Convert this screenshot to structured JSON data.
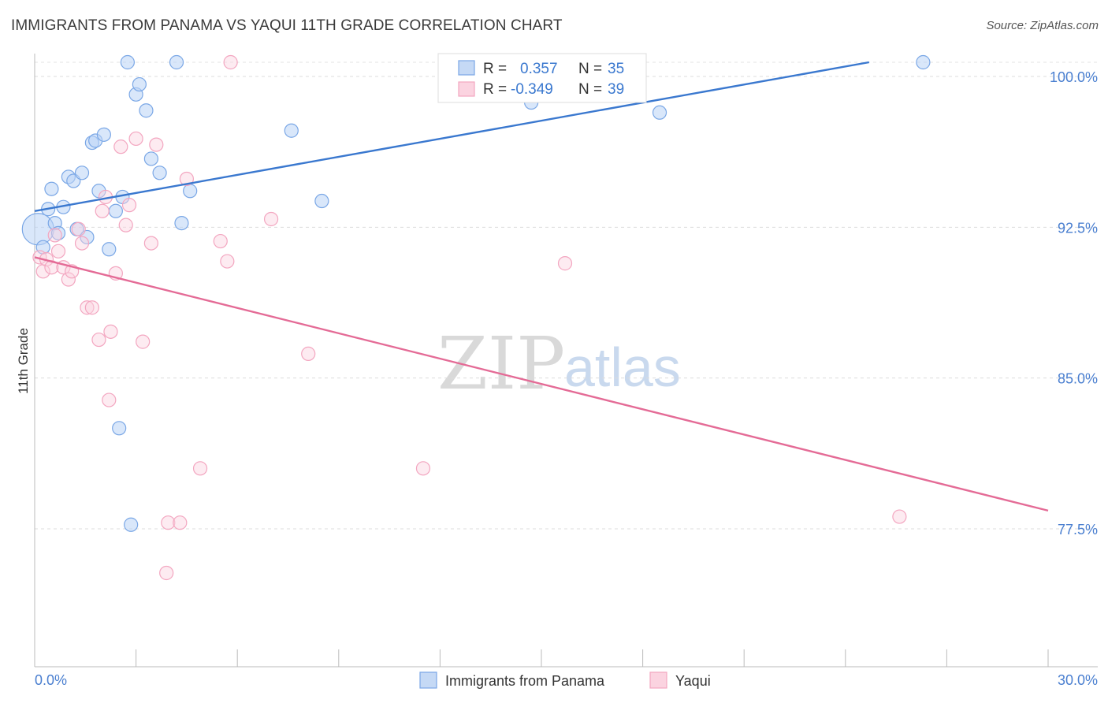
{
  "header": {
    "title": "IMMIGRANTS FROM PANAMA VS YAQUI 11TH GRADE CORRELATION CHART",
    "source": "Source: ZipAtlas.com"
  },
  "watermark": {
    "zip": "ZIP",
    "atlas": "atlas"
  },
  "legend_box": {
    "rows": [
      {
        "r_label": "R =",
        "r_value": "0.357",
        "n_label": "N =",
        "n_value": "35"
      },
      {
        "r_label": "R =",
        "r_value": "-0.349",
        "n_label": "N =",
        "n_value": "39"
      }
    ]
  },
  "chart_data": {
    "type": "scatter",
    "title": "IMMIGRANTS FROM PANAMA VS YAQUI 11TH GRADE CORRELATION CHART",
    "xlabel": "",
    "ylabel": "11th Grade",
    "xlim": [
      0,
      30
    ],
    "ylim": [
      70.5,
      101.0
    ],
    "x_tick_labels": [
      "0.0%",
      "30.0%"
    ],
    "y_ticks": [
      77.5,
      85.0,
      92.5,
      100.0
    ],
    "y_tick_labels": [
      "77.5%",
      "85.0%",
      "92.5%",
      "100.0%"
    ],
    "grid": true,
    "legend_position": "bottom",
    "colors": {
      "panama": "#7aa7e6",
      "panama_line": "#3a78cf",
      "yaqui": "#f3a6c0",
      "yaqui_line": "#e46b96"
    },
    "series": [
      {
        "name": "Immigrants from Panama",
        "trend": {
          "x": [
            0.0,
            24.7
          ],
          "y": [
            92.6,
            100.0
          ]
        },
        "points": [
          {
            "x": 0.1,
            "y": 91.7,
            "big": true
          },
          {
            "x": 0.25,
            "y": 90.8
          },
          {
            "x": 0.4,
            "y": 92.7
          },
          {
            "x": 0.5,
            "y": 93.7
          },
          {
            "x": 0.6,
            "y": 92.0
          },
          {
            "x": 0.7,
            "y": 91.5
          },
          {
            "x": 0.85,
            "y": 92.8
          },
          {
            "x": 1.0,
            "y": 94.3
          },
          {
            "x": 1.15,
            "y": 94.1
          },
          {
            "x": 1.25,
            "y": 91.7
          },
          {
            "x": 1.4,
            "y": 94.5
          },
          {
            "x": 1.55,
            "y": 91.3
          },
          {
            "x": 1.7,
            "y": 96.0
          },
          {
            "x": 1.8,
            "y": 96.1
          },
          {
            "x": 1.9,
            "y": 93.6
          },
          {
            "x": 2.05,
            "y": 96.4
          },
          {
            "x": 2.2,
            "y": 90.7
          },
          {
            "x": 2.4,
            "y": 92.6
          },
          {
            "x": 2.5,
            "y": 81.8
          },
          {
            "x": 2.6,
            "y": 93.3
          },
          {
            "x": 2.75,
            "y": 100.0
          },
          {
            "x": 2.85,
            "y": 77.0
          },
          {
            "x": 3.0,
            "y": 98.4
          },
          {
            "x": 3.1,
            "y": 98.9
          },
          {
            "x": 3.3,
            "y": 97.6
          },
          {
            "x": 3.45,
            "y": 95.2
          },
          {
            "x": 3.7,
            "y": 94.5
          },
          {
            "x": 4.2,
            "y": 100.0
          },
          {
            "x": 4.35,
            "y": 92.0
          },
          {
            "x": 4.6,
            "y": 93.6
          },
          {
            "x": 7.6,
            "y": 96.6
          },
          {
            "x": 8.5,
            "y": 93.1
          },
          {
            "x": 14.7,
            "y": 98.0
          },
          {
            "x": 18.5,
            "y": 97.5
          },
          {
            "x": 26.3,
            "y": 100.0
          }
        ]
      },
      {
        "name": "Yaqui",
        "trend": {
          "x": [
            0.0,
            30.0
          ],
          "y": [
            90.3,
            77.7
          ]
        },
        "points": [
          {
            "x": 0.15,
            "y": 90.3
          },
          {
            "x": 0.25,
            "y": 89.6
          },
          {
            "x": 0.35,
            "y": 90.2
          },
          {
            "x": 0.5,
            "y": 89.8
          },
          {
            "x": 0.6,
            "y": 91.4
          },
          {
            "x": 0.7,
            "y": 90.6
          },
          {
            "x": 0.85,
            "y": 89.8
          },
          {
            "x": 1.0,
            "y": 89.2
          },
          {
            "x": 1.1,
            "y": 89.6
          },
          {
            "x": 1.3,
            "y": 91.7
          },
          {
            "x": 1.4,
            "y": 91.0
          },
          {
            "x": 1.55,
            "y": 87.8
          },
          {
            "x": 1.7,
            "y": 87.8
          },
          {
            "x": 1.9,
            "y": 86.2
          },
          {
            "x": 2.0,
            "y": 92.6
          },
          {
            "x": 2.1,
            "y": 93.3
          },
          {
            "x": 2.2,
            "y": 83.2
          },
          {
            "x": 2.25,
            "y": 86.6
          },
          {
            "x": 2.4,
            "y": 89.5
          },
          {
            "x": 2.55,
            "y": 95.8
          },
          {
            "x": 2.7,
            "y": 91.9
          },
          {
            "x": 2.8,
            "y": 92.9
          },
          {
            "x": 3.0,
            "y": 96.2
          },
          {
            "x": 3.2,
            "y": 86.1
          },
          {
            "x": 3.45,
            "y": 91.0
          },
          {
            "x": 3.6,
            "y": 95.9
          },
          {
            "x": 3.9,
            "y": 74.6
          },
          {
            "x": 3.95,
            "y": 77.1
          },
          {
            "x": 4.3,
            "y": 77.1
          },
          {
            "x": 4.5,
            "y": 94.2
          },
          {
            "x": 4.9,
            "y": 79.8
          },
          {
            "x": 5.5,
            "y": 91.1
          },
          {
            "x": 5.7,
            "y": 90.1
          },
          {
            "x": 5.8,
            "y": 100.0
          },
          {
            "x": 7.0,
            "y": 92.2
          },
          {
            "x": 8.1,
            "y": 85.5
          },
          {
            "x": 11.5,
            "y": 79.8
          },
          {
            "x": 15.7,
            "y": 90.0
          },
          {
            "x": 25.6,
            "y": 77.4
          }
        ]
      }
    ]
  }
}
